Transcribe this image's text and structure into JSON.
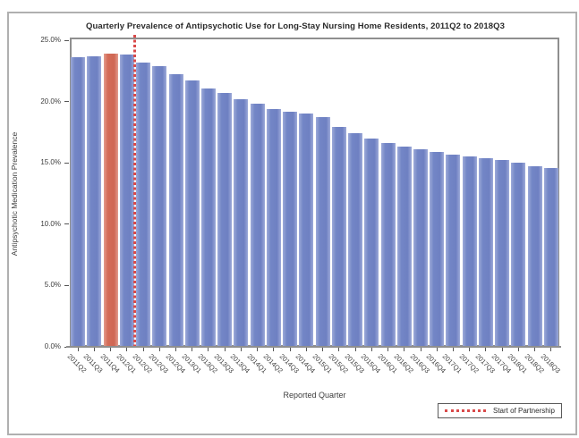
{
  "window": {
    "background": "#ffffff",
    "frame_border_color": "#b0b0b0"
  },
  "chart_data": {
    "type": "bar",
    "title": "Quarterly Prevalence of Antipsychotic Use for Long-Stay Nursing Home Residents, 2011Q2 to 2018Q3",
    "xlabel": "Reported Quarter",
    "ylabel": "Antipsychotic Medication Prevalence",
    "categories": [
      "2011Q2",
      "2011Q3",
      "2011Q4",
      "2012Q1",
      "2012Q2",
      "2012Q3",
      "2012Q4",
      "2013Q1",
      "2013Q2",
      "2013Q3",
      "2013Q4",
      "2014Q1",
      "2014Q2",
      "2014Q3",
      "2014Q4",
      "2015Q1",
      "2015Q2",
      "2015Q3",
      "2015Q4",
      "2016Q1",
      "2016Q2",
      "2016Q3",
      "2016Q4",
      "2017Q1",
      "2017Q2",
      "2017Q3",
      "2017Q4",
      "2018Q1",
      "2018Q2",
      "2018Q3"
    ],
    "values": [
      23.6,
      23.7,
      23.9,
      23.8,
      23.2,
      22.9,
      22.2,
      21.7,
      21.1,
      20.7,
      20.2,
      19.8,
      19.4,
      19.2,
      19.0,
      18.7,
      17.9,
      17.4,
      17.0,
      16.6,
      16.3,
      16.1,
      15.9,
      15.7,
      15.5,
      15.4,
      15.2,
      15.0,
      14.7,
      14.6
    ],
    "ylim": [
      0,
      25
    ],
    "yticks": [
      0,
      5,
      10,
      15,
      20,
      25
    ],
    "ytick_labels": [
      "0.0%",
      "5.0%",
      "10.0%",
      "15.0%",
      "20.0%",
      "25.0%"
    ],
    "grid": false,
    "bar_color": "#7386c6",
    "highlight_color": "#d46c58",
    "highlighted_category": "2011Q4",
    "reference_line": {
      "after_category": "2012Q1",
      "style": "dotted",
      "color": "#d94a4a"
    },
    "legend": {
      "position": "bottom-right",
      "entries": [
        {
          "marker": "dotted-line",
          "color": "#d94a4a",
          "label": "Start of Partnership"
        }
      ]
    }
  }
}
